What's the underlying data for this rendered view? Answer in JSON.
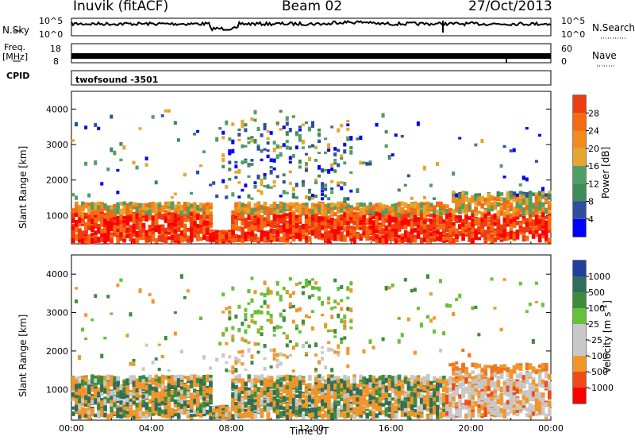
{
  "header": {
    "station": "Inuvik (fitACF)",
    "beam": "Beam 02",
    "date": "27/Oct/2013"
  },
  "top_panels": {
    "nsky_label": "N.Sky",
    "nsky_hi": "10^5",
    "nsky_lo": "10^0",
    "nsearch_label": "N.Search",
    "freq_label": "Freq.",
    "freq_unit": "[MHz]",
    "freq_hi": "18",
    "freq_lo": "8",
    "nave_label": "Nave",
    "nave_hi": "60",
    "nave_lo": "0",
    "cpid_label": "CPID",
    "cpid_value": "twofsound -3501"
  },
  "colors": {
    "power_scale": [
      "#0000ff",
      "#2e4f9e",
      "#3f8a5a",
      "#4f9e66",
      "#e6a52e",
      "#f28a1c",
      "#f56b12",
      "#ef3b10",
      "#ff0000"
    ],
    "velocity_scale": [
      "#2040a0",
      "#2f6e5a",
      "#3c8c3c",
      "#67c03a",
      "#c8c8c8",
      "#c8c8c8",
      "#f2962a",
      "#f07620",
      "#f04a18",
      "#ff0000"
    ]
  },
  "chart_data": [
    {
      "type": "heatmap",
      "name": "power",
      "ylabel": "Slant Range [km]",
      "xlabel": "",
      "yticks": [
        "1000",
        "2000",
        "3000",
        "4000"
      ],
      "ylim": [
        200,
        4500
      ],
      "colorbar_label": "Power [dB]",
      "colorbar_ticks": [
        "4",
        "8",
        "12",
        "16",
        "20",
        "24",
        "28"
      ],
      "colorbar_range": [
        0,
        32
      ]
    },
    {
      "type": "heatmap",
      "name": "velocity",
      "ylabel": "Slant Range [km]",
      "xlabel": "Time UT",
      "yticks": [
        "1000",
        "2000",
        "3000",
        "4000"
      ],
      "ylim": [
        200,
        4500
      ],
      "xticks": [
        "00:00",
        "04:00",
        "08:00",
        "12:00",
        "16:00",
        "20:00",
        "00:00"
      ],
      "colorbar_label": "Velocity [m s^-1]",
      "colorbar_ticks": [
        "1000",
        "500",
        "100",
        "25",
        "-25",
        "-100",
        "-500",
        "-1000"
      ]
    }
  ]
}
